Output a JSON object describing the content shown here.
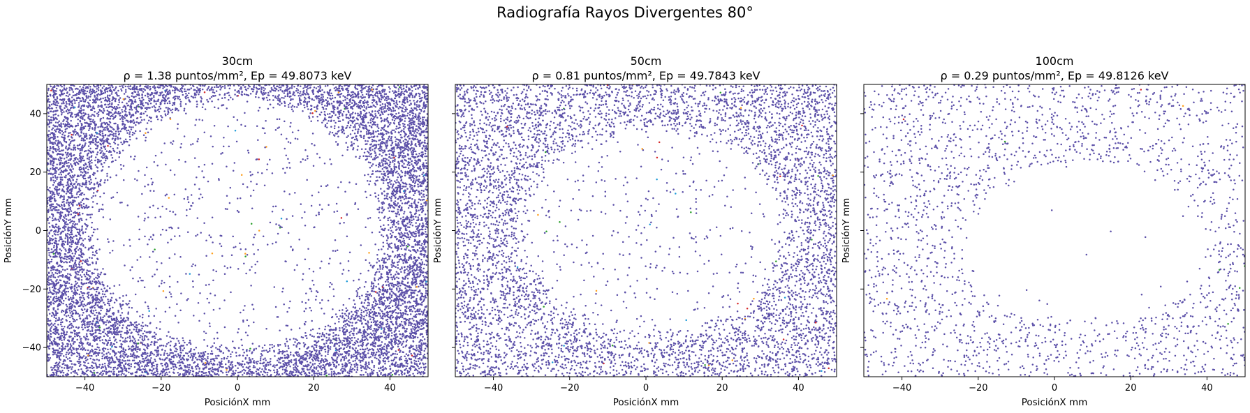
{
  "figure": {
    "title": "Radiografía Rayos Divergentes 80°"
  },
  "chart_data": [
    {
      "type": "scatter",
      "title": "30cm",
      "subtitle": "ρ = 1.38 puntos/mm², Ep = 49.8073 keV",
      "xlabel": "PosiciónX mm",
      "ylabel": "PosiciónY mm",
      "xlim": [
        -50,
        50
      ],
      "ylim": [
        -50,
        50
      ],
      "xticks": [
        -40,
        -20,
        0,
        20,
        40
      ],
      "yticks": [
        -40,
        -20,
        0,
        20,
        40
      ],
      "yticklabels_visible": true,
      "grid": false,
      "point_color": "#5b4fa8",
      "hole": {
        "center": [
          0,
          2
        ],
        "semi_axes": [
          37,
          42
        ]
      },
      "density_outside_per_mm2": 1.38,
      "density_inside_per_mm2": 0.12,
      "marker_size": 1
    },
    {
      "type": "scatter",
      "title": "50cm",
      "subtitle": "ρ = 0.81 puntos/mm², Ep = 49.7843 keV",
      "xlabel": "PosiciónX mm",
      "ylabel": "PosiciónY mm",
      "xlim": [
        -50,
        50
      ],
      "ylim": [
        -50,
        50
      ],
      "xticks": [
        -40,
        -20,
        0,
        20,
        40
      ],
      "yticks": [
        -40,
        -20,
        0,
        20,
        40
      ],
      "yticklabels_visible": false,
      "grid": false,
      "point_color": "#5b4fa8",
      "hole": {
        "center": [
          2,
          0
        ],
        "semi_axes": [
          33,
          34
        ]
      },
      "density_outside_per_mm2": 0.81,
      "density_inside_per_mm2": 0.09,
      "marker_size": 1
    },
    {
      "type": "scatter",
      "title": "100cm",
      "subtitle": "ρ = 0.29 puntos/mm², Ep = 49.8126 keV",
      "xlabel": "PosiciónX mm",
      "ylabel": "PosiciónY mm",
      "xlim": [
        -50,
        50
      ],
      "ylim": [
        -50,
        50
      ],
      "xticks": [
        -40,
        -20,
        0,
        20,
        40
      ],
      "yticks": [
        -40,
        -20,
        0,
        20,
        40
      ],
      "yticklabels_visible": false,
      "grid": false,
      "point_color": "#5b4fa8",
      "hole": {
        "center": [
          8,
          -4
        ],
        "semi_axes": [
          30,
          26
        ]
      },
      "density_outside_per_mm2": 0.29,
      "density_inside_per_mm2": 0.004,
      "marker_size": 1
    }
  ]
}
